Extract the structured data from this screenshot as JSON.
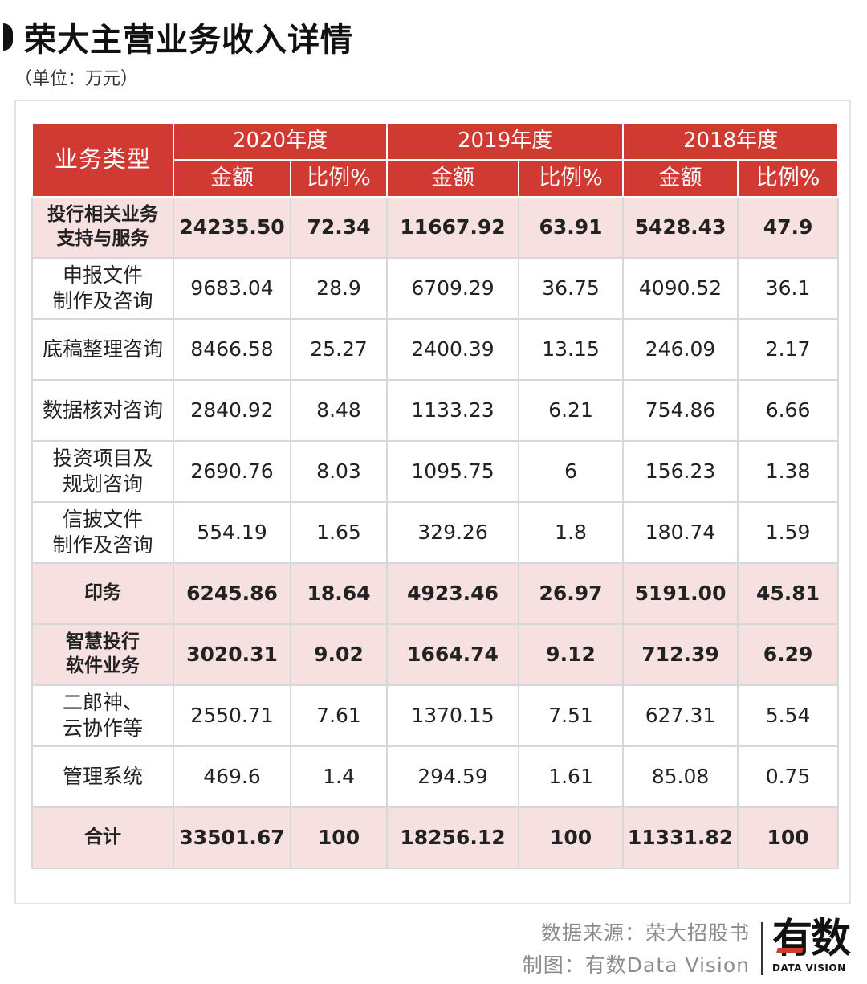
{
  "title": "荣大主营业务收入详情",
  "unit": "（单位：万元）",
  "table": {
    "type_header": "业务类型",
    "years": [
      "2020年度",
      "2019年度",
      "2018年度"
    ],
    "sub_headers": [
      "金额",
      "比例%"
    ],
    "rows": [
      {
        "label_lines": [
          "投行相关业务",
          "支持与服务"
        ],
        "highlight": true,
        "cells": [
          "24235.50",
          "72.34",
          "11667.92",
          "63.91",
          "5428.43",
          "47.9"
        ]
      },
      {
        "label_lines": [
          "申报文件",
          "制作及咨询"
        ],
        "highlight": false,
        "cells": [
          "9683.04",
          "28.9",
          "6709.29",
          "36.75",
          "4090.52",
          "36.1"
        ]
      },
      {
        "label_lines": [
          "底稿整理咨询"
        ],
        "highlight": false,
        "cells": [
          "8466.58",
          "25.27",
          "2400.39",
          "13.15",
          "246.09",
          "2.17"
        ]
      },
      {
        "label_lines": [
          "数据核对咨询"
        ],
        "highlight": false,
        "cells": [
          "2840.92",
          "8.48",
          "1133.23",
          "6.21",
          "754.86",
          "6.66"
        ]
      },
      {
        "label_lines": [
          "投资项目及",
          "规划咨询"
        ],
        "highlight": false,
        "cells": [
          "2690.76",
          "8.03",
          "1095.75",
          "6",
          "156.23",
          "1.38"
        ]
      },
      {
        "label_lines": [
          "信披文件",
          "制作及咨询"
        ],
        "highlight": false,
        "cells": [
          "554.19",
          "1.65",
          "329.26",
          "1.8",
          "180.74",
          "1.59"
        ]
      },
      {
        "label_lines": [
          "印务"
        ],
        "highlight": true,
        "cells": [
          "6245.86",
          "18.64",
          "4923.46",
          "26.97",
          "5191.00",
          "45.81"
        ]
      },
      {
        "label_lines": [
          "智慧投行",
          "软件业务"
        ],
        "highlight": true,
        "cells": [
          "3020.31",
          "9.02",
          "1664.74",
          "9.12",
          "712.39",
          "6.29"
        ]
      },
      {
        "label_lines": [
          "二郎神、",
          "云协作等"
        ],
        "highlight": false,
        "cells": [
          "2550.71",
          "7.61",
          "1370.15",
          "7.51",
          "627.31",
          "5.54"
        ]
      },
      {
        "label_lines": [
          "管理系统"
        ],
        "highlight": false,
        "cells": [
          "469.6",
          "1.4",
          "294.59",
          "1.61",
          "85.08",
          "0.75"
        ]
      },
      {
        "label_lines": [
          "合计"
        ],
        "highlight": true,
        "cells": [
          "33501.67",
          "100",
          "18256.12",
          "100",
          "11331.82",
          "100"
        ]
      }
    ]
  },
  "footer": {
    "source": "数据来源：荣大招股书",
    "credit": "制图：有数Data Vision"
  },
  "logo": {
    "main": "有数",
    "sub": "DATA VISION"
  },
  "colors": {
    "header_red": "#d03a33",
    "highlight_row": "#f6e1e0"
  }
}
